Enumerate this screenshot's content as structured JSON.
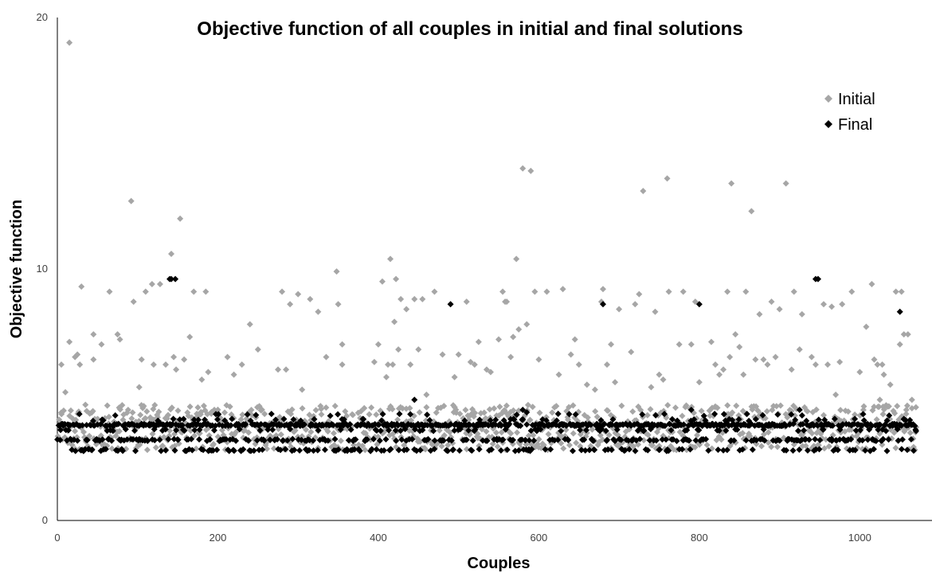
{
  "chart_data": {
    "type": "scatter",
    "title": "Objective function of all couples in initial and final solutions",
    "xlabel": "Couples",
    "ylabel": "Objective function",
    "xlim": [
      0,
      1090
    ],
    "ylim": [
      0,
      20
    ],
    "x_ticks": [
      "0",
      "200",
      "400",
      "600",
      "800",
      "1000"
    ],
    "y_ticks": [
      "0",
      "10",
      "20"
    ],
    "grid": false,
    "legend_position": "top-right",
    "series": [
      {
        "name": "Initial",
        "color": "#a6a6a6",
        "marker": "diamond",
        "points": [
          [
            5,
            6.2
          ],
          [
            10,
            5.1
          ],
          [
            15,
            19.0
          ],
          [
            15,
            7.1
          ],
          [
            22,
            6.5
          ],
          [
            25,
            6.6
          ],
          [
            28,
            6.2
          ],
          [
            30,
            9.3
          ],
          [
            35,
            4.6
          ],
          [
            45,
            6.4
          ],
          [
            45,
            7.4
          ],
          [
            55,
            7.0
          ],
          [
            65,
            9.1
          ],
          [
            75,
            7.4
          ],
          [
            78,
            7.2
          ],
          [
            92,
            12.7
          ],
          [
            95,
            8.7
          ],
          [
            102,
            5.3
          ],
          [
            105,
            6.4
          ],
          [
            110,
            9.1
          ],
          [
            118,
            9.4
          ],
          [
            120,
            6.2
          ],
          [
            128,
            9.4
          ],
          [
            135,
            6.2
          ],
          [
            142,
            10.6
          ],
          [
            145,
            6.5
          ],
          [
            148,
            6.0
          ],
          [
            153,
            12.0
          ],
          [
            158,
            6.4
          ],
          [
            165,
            7.3
          ],
          [
            170,
            9.1
          ],
          [
            180,
            5.6
          ],
          [
            185,
            9.1
          ],
          [
            188,
            5.9
          ],
          [
            212,
            6.5
          ],
          [
            220,
            5.8
          ],
          [
            230,
            6.2
          ],
          [
            240,
            7.8
          ],
          [
            250,
            6.8
          ],
          [
            275,
            6.0
          ],
          [
            280,
            9.1
          ],
          [
            285,
            6.0
          ],
          [
            290,
            8.6
          ],
          [
            300,
            9.0
          ],
          [
            305,
            5.2
          ],
          [
            315,
            8.8
          ],
          [
            325,
            8.3
          ],
          [
            335,
            6.5
          ],
          [
            348,
            9.9
          ],
          [
            350,
            8.6
          ],
          [
            355,
            6.2
          ],
          [
            355,
            7.0
          ],
          [
            395,
            6.3
          ],
          [
            400,
            7.0
          ],
          [
            405,
            9.5
          ],
          [
            410,
            5.7
          ],
          [
            412,
            6.2
          ],
          [
            415,
            10.4
          ],
          [
            418,
            6.2
          ],
          [
            420,
            7.9
          ],
          [
            422,
            9.6
          ],
          [
            425,
            6.8
          ],
          [
            428,
            8.8
          ],
          [
            435,
            8.4
          ],
          [
            440,
            6.2
          ],
          [
            445,
            8.8
          ],
          [
            450,
            6.8
          ],
          [
            455,
            8.8
          ],
          [
            460,
            5.0
          ],
          [
            470,
            9.1
          ],
          [
            480,
            6.6
          ],
          [
            495,
            5.7
          ],
          [
            500,
            6.6
          ],
          [
            510,
            8.7
          ],
          [
            515,
            6.3
          ],
          [
            520,
            6.2
          ],
          [
            525,
            7.1
          ],
          [
            535,
            6.0
          ],
          [
            540,
            5.9
          ],
          [
            550,
            7.2
          ],
          [
            555,
            9.1
          ],
          [
            558,
            8.7
          ],
          [
            560,
            8.7
          ],
          [
            565,
            6.5
          ],
          [
            568,
            7.3
          ],
          [
            572,
            10.4
          ],
          [
            575,
            7.6
          ],
          [
            580,
            14.0
          ],
          [
            585,
            7.8
          ],
          [
            590,
            13.9
          ],
          [
            595,
            9.1
          ],
          [
            600,
            6.4
          ],
          [
            610,
            9.1
          ],
          [
            625,
            5.8
          ],
          [
            630,
            9.2
          ],
          [
            640,
            6.6
          ],
          [
            645,
            7.2
          ],
          [
            650,
            6.2
          ],
          [
            660,
            5.4
          ],
          [
            670,
            5.2
          ],
          [
            678,
            8.7
          ],
          [
            680,
            9.2
          ],
          [
            685,
            6.2
          ],
          [
            690,
            7.0
          ],
          [
            695,
            5.5
          ],
          [
            700,
            8.4
          ],
          [
            715,
            6.7
          ],
          [
            720,
            8.6
          ],
          [
            725,
            9.0
          ],
          [
            730,
            13.1
          ],
          [
            740,
            5.3
          ],
          [
            745,
            8.3
          ],
          [
            750,
            5.8
          ],
          [
            755,
            5.6
          ],
          [
            760,
            13.6
          ],
          [
            762,
            9.1
          ],
          [
            775,
            7.0
          ],
          [
            780,
            9.1
          ],
          [
            790,
            7.0
          ],
          [
            795,
            8.7
          ],
          [
            800,
            5.5
          ],
          [
            815,
            7.1
          ],
          [
            820,
            6.2
          ],
          [
            825,
            5.8
          ],
          [
            830,
            6.0
          ],
          [
            835,
            9.1
          ],
          [
            838,
            6.5
          ],
          [
            840,
            13.4
          ],
          [
            845,
            7.4
          ],
          [
            850,
            6.9
          ],
          [
            855,
            5.8
          ],
          [
            858,
            9.1
          ],
          [
            865,
            12.3
          ],
          [
            870,
            6.4
          ],
          [
            875,
            8.2
          ],
          [
            880,
            6.4
          ],
          [
            885,
            6.2
          ],
          [
            890,
            8.7
          ],
          [
            895,
            6.5
          ],
          [
            900,
            8.4
          ],
          [
            908,
            13.4
          ],
          [
            915,
            6.0
          ],
          [
            918,
            9.1
          ],
          [
            925,
            6.8
          ],
          [
            928,
            8.2
          ],
          [
            940,
            6.5
          ],
          [
            945,
            6.2
          ],
          [
            948,
            9.6
          ],
          [
            955,
            8.6
          ],
          [
            960,
            6.2
          ],
          [
            965,
            8.5
          ],
          [
            970,
            5.0
          ],
          [
            975,
            6.3
          ],
          [
            978,
            8.6
          ],
          [
            990,
            9.1
          ],
          [
            1000,
            5.9
          ],
          [
            1008,
            7.7
          ],
          [
            1015,
            9.4
          ],
          [
            1018,
            6.4
          ],
          [
            1022,
            6.2
          ],
          [
            1025,
            4.8
          ],
          [
            1028,
            6.2
          ],
          [
            1030,
            5.8
          ],
          [
            1038,
            5.4
          ],
          [
            1045,
            9.1
          ],
          [
            1050,
            7.0
          ],
          [
            1052,
            9.1
          ],
          [
            1055,
            7.4
          ],
          [
            1058,
            4.4
          ],
          [
            1060,
            7.4
          ],
          [
            1065,
            4.8
          ],
          [
            1070,
            4.5
          ]
        ]
      },
      {
        "name": "Final",
        "color": "#000000",
        "marker": "diamond",
        "points": [
          [
            140,
            9.6
          ],
          [
            142,
            9.6
          ],
          [
            147,
            9.6
          ],
          [
            490,
            8.6
          ],
          [
            680,
            8.6
          ],
          [
            800,
            8.6
          ],
          [
            945,
            9.6
          ],
          [
            948,
            9.6
          ],
          [
            1050,
            8.3
          ]
        ]
      }
    ],
    "dense_band": {
      "x_range": [
        0,
        1070
      ],
      "initial_y_range": [
        2.8,
        4.6
      ],
      "final_levels": [
        2.8,
        3.2,
        3.6,
        3.8,
        4.0,
        4.2
      ],
      "final_outliers": [
        [
          445,
          4.8
        ],
        [
          580,
          4.4
        ],
        [
          585,
          4.3
        ],
        [
          790,
          4.4
        ],
        [
          925,
          4.4
        ]
      ]
    }
  }
}
